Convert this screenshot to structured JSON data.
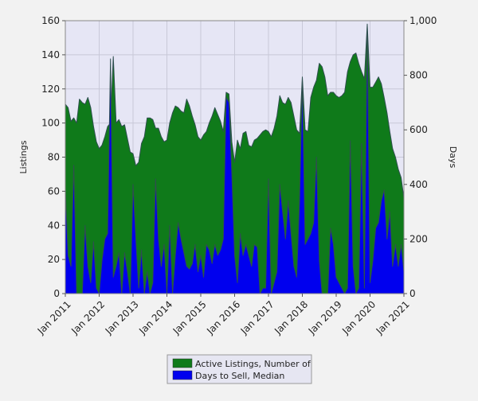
{
  "chart_data": {
    "type": "area",
    "xlabel": "",
    "x_ticks": [
      "Jan 2011",
      "Jan 2012",
      "Jan 2013",
      "Jan 2014",
      "Jan 2015",
      "Jan 2016",
      "Jan 2017",
      "Jan 2018",
      "Jan 2019",
      "Jan 2020",
      "Jan 2021"
    ],
    "y_left": {
      "label": "Listings",
      "lim": [
        0,
        160
      ],
      "ticks": [
        "0",
        "20",
        "40",
        "60",
        "80",
        "100",
        "120",
        "140",
        "160"
      ]
    },
    "y_right": {
      "label": "Days",
      "lim": [
        0,
        1000
      ],
      "ticks": [
        "0",
        "200",
        "400",
        "600",
        "800",
        "1,000"
      ]
    },
    "grid": true,
    "legend_position": "bottom-center",
    "plot_background": "#e6e6f5",
    "series": [
      {
        "name": "Active Listings, Number of",
        "axis": "left",
        "color": "#0f7a1a",
        "x": [
          "2011-01",
          "2011-02",
          "2011-03",
          "2011-04",
          "2011-05",
          "2011-06",
          "2011-07",
          "2011-08",
          "2011-09",
          "2011-10",
          "2011-11",
          "2011-12",
          "2012-01",
          "2012-02",
          "2012-03",
          "2012-04",
          "2012-05",
          "2012-06",
          "2012-07",
          "2012-08",
          "2012-09",
          "2012-10",
          "2012-11",
          "2012-12",
          "2013-01",
          "2013-02",
          "2013-03",
          "2013-04",
          "2013-05",
          "2013-06",
          "2013-07",
          "2013-08",
          "2013-09",
          "2013-10",
          "2013-11",
          "2013-12",
          "2014-01",
          "2014-02",
          "2014-03",
          "2014-04",
          "2014-05",
          "2014-06",
          "2014-07",
          "2014-08",
          "2014-09",
          "2014-10",
          "2014-11",
          "2014-12",
          "2015-01",
          "2015-02",
          "2015-03",
          "2015-04",
          "2015-05",
          "2015-06",
          "2015-07",
          "2015-08",
          "2015-09",
          "2015-10",
          "2015-11",
          "2015-12",
          "2016-01",
          "2016-02",
          "2016-03",
          "2016-04",
          "2016-05",
          "2016-06",
          "2016-07",
          "2016-08",
          "2016-09",
          "2016-10",
          "2016-11",
          "2016-12",
          "2017-01",
          "2017-02",
          "2017-03",
          "2017-04",
          "2017-05",
          "2017-06",
          "2017-07",
          "2017-08",
          "2017-09",
          "2017-10",
          "2017-11",
          "2017-12",
          "2018-01",
          "2018-02",
          "2018-03",
          "2018-04",
          "2018-05",
          "2018-06",
          "2018-07",
          "2018-08",
          "2018-09",
          "2018-10",
          "2018-11",
          "2018-12",
          "2019-01",
          "2019-02",
          "2019-03",
          "2019-04",
          "2019-05",
          "2019-06",
          "2019-07",
          "2019-08",
          "2019-09",
          "2019-10",
          "2019-11",
          "2019-12",
          "2020-01",
          "2020-02",
          "2020-03",
          "2020-04",
          "2020-05",
          "2020-06",
          "2020-07",
          "2020-08",
          "2020-09",
          "2020-10",
          "2020-11",
          "2020-12",
          "2021-01"
        ],
        "values": [
          111,
          109,
          101,
          103,
          100,
          114,
          112,
          111,
          115,
          109,
          98,
          89,
          85,
          87,
          92,
          98,
          100,
          139,
          100,
          102,
          98,
          99,
          91,
          83,
          82,
          75,
          77,
          88,
          92,
          103,
          103,
          102,
          97,
          97,
          92,
          89,
          90,
          100,
          106,
          110,
          109,
          107,
          106,
          114,
          110,
          104,
          99,
          92,
          90,
          93,
          95,
          100,
          104,
          109,
          105,
          101,
          95,
          118,
          117,
          89,
          77,
          90,
          85,
          94,
          95,
          87,
          86,
          90,
          91,
          93,
          95,
          96,
          95,
          92,
          97,
          104,
          116,
          112,
          111,
          115,
          112,
          104,
          96,
          94,
          127,
          96,
          95,
          115,
          121,
          125,
          135,
          133,
          127,
          116,
          118,
          118,
          116,
          115,
          116,
          118,
          130,
          136,
          140,
          141,
          135,
          130,
          126,
          158,
          121,
          121,
          124,
          127,
          123,
          115,
          106,
          95,
          85,
          80,
          73,
          68,
          56
        ]
      },
      {
        "name": "Days to Sell, Median",
        "axis": "right",
        "color": "#0000ee",
        "x": [
          "2011-01",
          "2011-02",
          "2011-03",
          "2011-04",
          "2011-05",
          "2011-06",
          "2011-07",
          "2011-08",
          "2011-09",
          "2011-10",
          "2011-11",
          "2011-12",
          "2012-01",
          "2012-02",
          "2012-03",
          "2012-04",
          "2012-05",
          "2012-06",
          "2012-07",
          "2012-08",
          "2012-09",
          "2012-10",
          "2012-11",
          "2012-12",
          "2013-01",
          "2013-02",
          "2013-03",
          "2013-04",
          "2013-05",
          "2013-06",
          "2013-07",
          "2013-08",
          "2013-09",
          "2013-10",
          "2013-11",
          "2013-12",
          "2014-01",
          "2014-02",
          "2014-03",
          "2014-04",
          "2014-05",
          "2014-06",
          "2014-07",
          "2014-08",
          "2014-09",
          "2014-10",
          "2014-11",
          "2014-12",
          "2015-01",
          "2015-02",
          "2015-03",
          "2015-04",
          "2015-05",
          "2015-06",
          "2015-07",
          "2015-08",
          "2015-09",
          "2015-10",
          "2015-11",
          "2015-12",
          "2016-01",
          "2016-02",
          "2016-03",
          "2016-04",
          "2016-05",
          "2016-06",
          "2016-07",
          "2016-08",
          "2016-09",
          "2016-10",
          "2016-11",
          "2016-12",
          "2017-01",
          "2017-02",
          "2017-03",
          "2017-04",
          "2017-05",
          "2017-06",
          "2017-07",
          "2017-08",
          "2017-09",
          "2017-10",
          "2017-11",
          "2017-12",
          "2018-01",
          "2018-02",
          "2018-03",
          "2018-04",
          "2018-05",
          "2018-06",
          "2018-07",
          "2018-08",
          "2018-09",
          "2018-10",
          "2018-11",
          "2018-12",
          "2019-01",
          "2019-02",
          "2019-03",
          "2019-04",
          "2019-05",
          "2019-06",
          "2019-07",
          "2019-08",
          "2019-09",
          "2019-10",
          "2019-11",
          "2019-12",
          "2020-01",
          "2020-02",
          "2020-03",
          "2020-04",
          "2020-05",
          "2020-06",
          "2020-07",
          "2020-08",
          "2020-09",
          "2020-10",
          "2020-11",
          "2020-12",
          "2021-01"
        ],
        "values": [
          380,
          140,
          100,
          470,
          0,
          0,
          0,
          250,
          100,
          40,
          190,
          20,
          0,
          120,
          200,
          220,
          860,
          60,
          100,
          150,
          0,
          150,
          80,
          0,
          400,
          200,
          20,
          160,
          0,
          80,
          0,
          40,
          420,
          200,
          100,
          180,
          0,
          250,
          0,
          140,
          260,
          200,
          150,
          100,
          90,
          110,
          180,
          80,
          140,
          60,
          180,
          160,
          110,
          180,
          140,
          160,
          200,
          720,
          700,
          440,
          140,
          40,
          220,
          140,
          180,
          140,
          100,
          180,
          170,
          0,
          20,
          20,
          420,
          0,
          40,
          80,
          400,
          300,
          200,
          340,
          220,
          100,
          60,
          340,
          780,
          180,
          200,
          220,
          260,
          500,
          120,
          0,
          0,
          0,
          240,
          180,
          60,
          40,
          20,
          0,
          20,
          560,
          100,
          0,
          20,
          550,
          20,
          980,
          40,
          120,
          240,
          260,
          340,
          380,
          200,
          300,
          100,
          180,
          100,
          180,
          80
        ]
      }
    ]
  }
}
